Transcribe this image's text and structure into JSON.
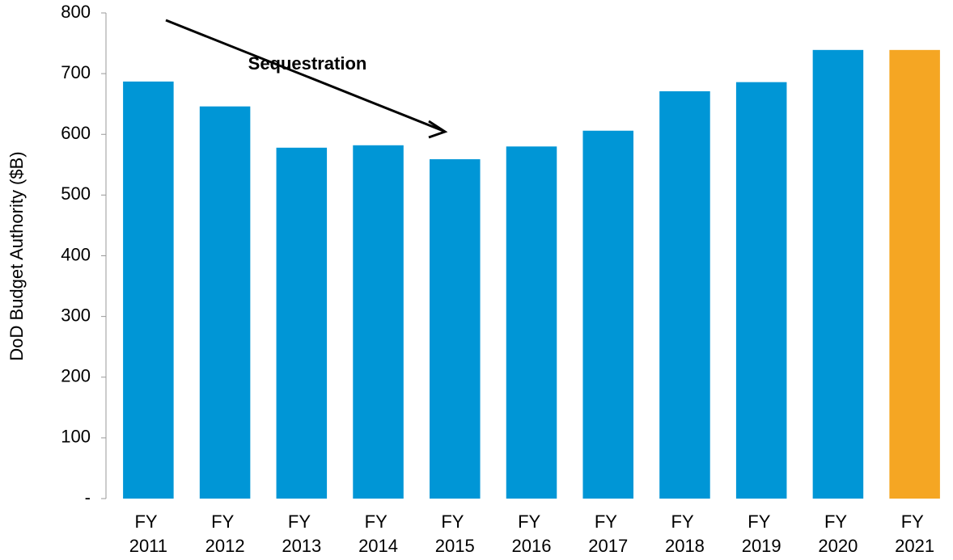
{
  "chart_data": {
    "type": "bar",
    "ylabel": "DoD Budget Authority ($B)",
    "annotation": "Sequestration",
    "categories": [
      "FY 2011",
      "FY 2012",
      "FY 2013",
      "FY 2014",
      "FY 2015",
      "FY 2016",
      "FY 2017",
      "FY 2018",
      "FY 2019",
      "FY 2020",
      "FY 2021"
    ],
    "values": [
      687,
      646,
      578,
      582,
      559,
      580,
      606,
      671,
      686,
      739,
      739
    ],
    "colors": [
      "#0096d6",
      "#0096d6",
      "#0096d6",
      "#0096d6",
      "#0096d6",
      "#0096d6",
      "#0096d6",
      "#0096d6",
      "#0096d6",
      "#0096d6",
      "#f5a623"
    ],
    "ylim": [
      0,
      800
    ],
    "yticks": [
      {
        "value": 0,
        "label": "-"
      },
      100,
      200,
      300,
      400,
      500,
      600,
      700,
      800
    ],
    "grid": false
  }
}
